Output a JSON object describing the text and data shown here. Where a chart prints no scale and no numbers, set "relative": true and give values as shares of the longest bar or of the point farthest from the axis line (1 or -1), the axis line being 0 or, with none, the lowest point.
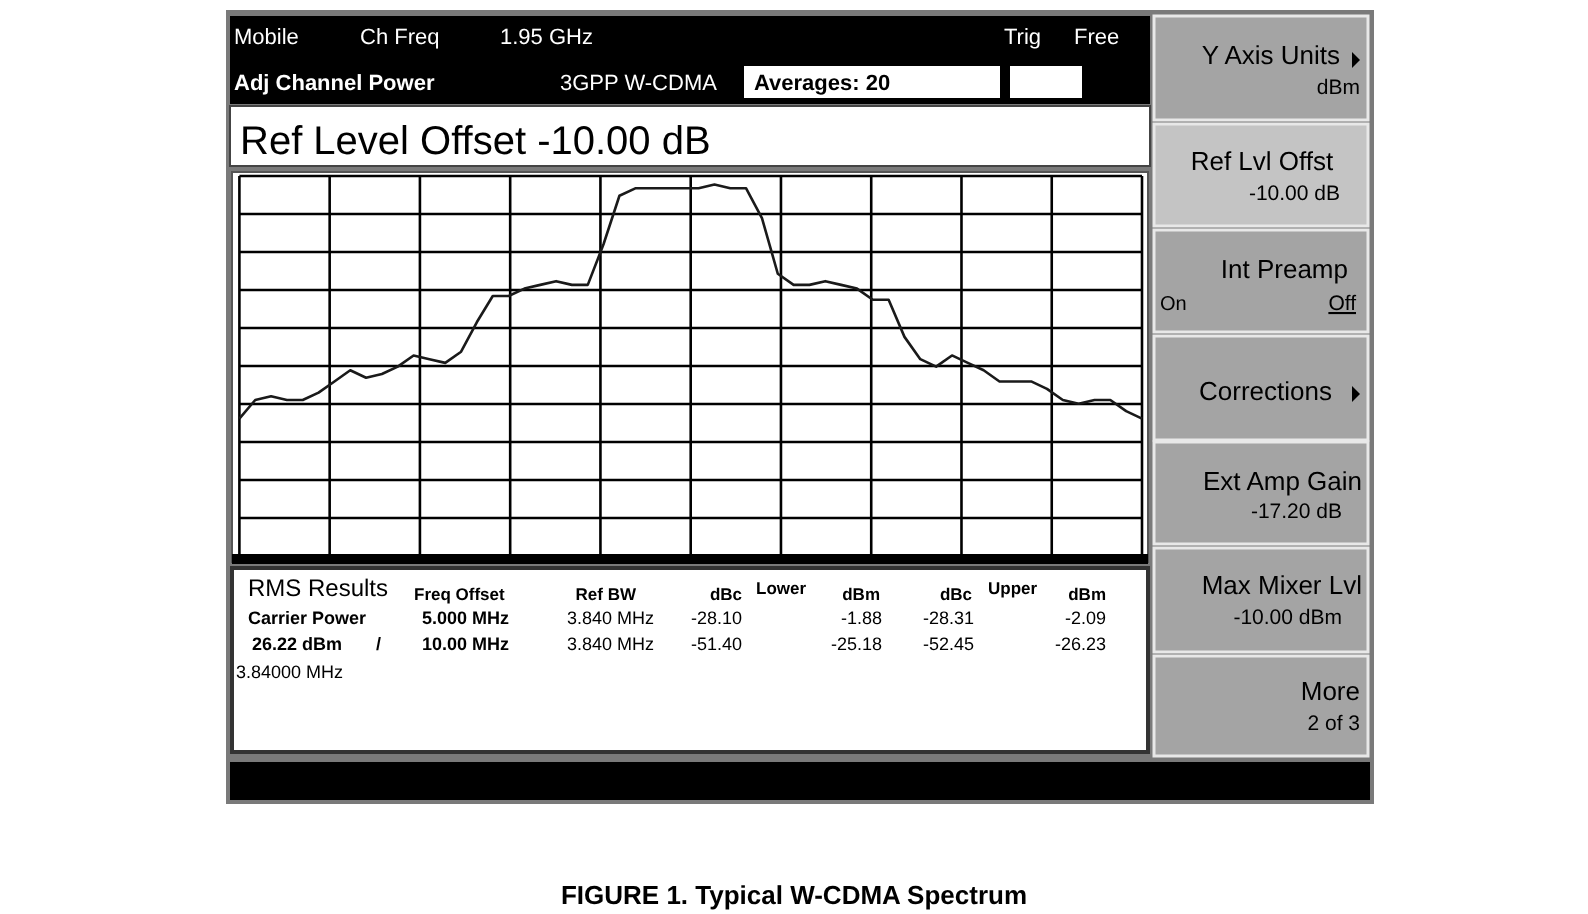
{
  "chart_data": {
    "type": "line",
    "relative": true,
    "grid": true,
    "title": "FIGURE 1. Typical W-CDMA Spectrum",
    "categories": [
      null,
      null,
      null,
      null,
      null,
      null,
      null,
      null,
      null,
      null,
      null,
      null,
      null,
      null,
      null,
      null,
      null,
      null,
      null,
      null,
      null,
      null,
      null,
      null,
      null,
      null,
      null,
      null,
      null,
      null,
      null,
      null,
      null,
      null,
      null,
      null,
      null,
      null,
      null,
      null,
      null,
      null,
      null,
      null,
      null,
      null,
      null,
      null,
      null,
      null,
      null,
      null,
      null,
      null,
      null,
      null,
      null,
      null
    ],
    "series": [
      {
        "color": "#1a1a1a",
        "values": [
          0.37,
          0.42,
          0.43,
          0.42,
          0.42,
          0.44,
          0.47,
          0.5,
          0.48,
          0.49,
          0.51,
          0.54,
          0.53,
          0.52,
          0.55,
          0.63,
          0.7,
          0.7,
          0.72,
          0.73,
          0.74,
          0.73,
          0.73,
          0.84,
          0.97,
          0.99,
          0.99,
          0.99,
          0.99,
          0.99,
          1,
          0.99,
          0.99,
          0.91,
          0.76,
          0.73,
          0.73,
          0.74,
          0.73,
          0.72,
          0.69,
          0.69,
          0.59,
          0.53,
          0.51,
          0.54,
          0.52,
          0.5,
          0.47,
          0.47,
          0.47,
          0.45,
          0.42,
          0.41,
          0.42,
          0.42,
          0.39,
          0.37
        ]
      }
    ],
    "annotations": [
      "Mobile",
      "Ch Freq",
      "1.95 GHz",
      "Trig",
      "Free",
      "Adj Channel Power",
      "3GPP W-CDMA",
      "Averages: 20",
      "Ref Level Offset -10.00 dB",
      "RMS Results",
      "Freq Offset",
      "Ref BW",
      "dBc",
      "Lower",
      "dBm",
      "dBc",
      "Upper",
      "dBm",
      "Carrier Power",
      "5.000 MHz",
      "3.840 MHz",
      "-28.10",
      "-1.88",
      "-28.31",
      "-2.09",
      "26.22 dBm",
      "/",
      "10.00 MHz",
      "3.840 MHz",
      "-51.40",
      "-25.18",
      "-52.45",
      "-26.23",
      "3.84000 MHz",
      "Y Axis Units",
      "dBm",
      "Ref Lvl Offst",
      "-10.00 dB",
      "Int Preamp",
      "On",
      "Off",
      "Corrections",
      "Ext Amp Gain",
      "-17.20 dB",
      "Max Mixer Lvl",
      "-10.00 dBm",
      "More",
      "2 of 3"
    ]
  }
}
